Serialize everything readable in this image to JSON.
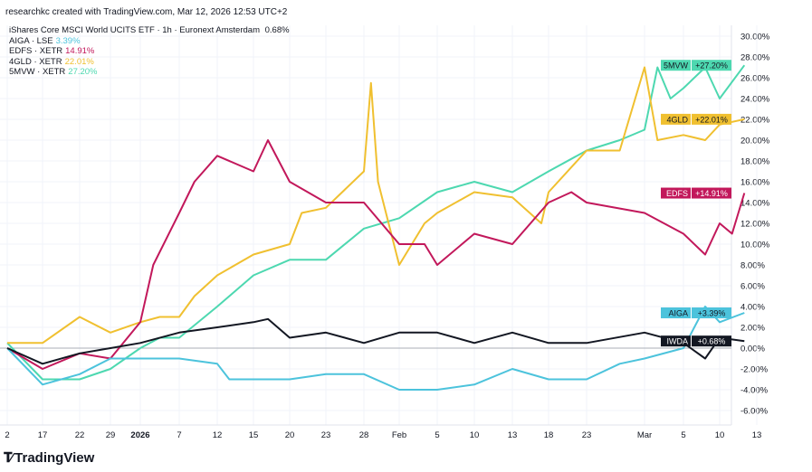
{
  "credit": "researchkc created with TradingView.com, Mar 12, 2026 12:53 UTC+2",
  "legend": {
    "main": "iShares Core MSCI World UCITS ETF · 1h · Euronext Amsterdam",
    "main_value": "0.68%",
    "items": [
      {
        "label": "AIGA · LSE",
        "value": "3.39%",
        "color": "#4cc3dc"
      },
      {
        "label": "EDFS · XETR",
        "value": "14.91%",
        "color": "#c2185b"
      },
      {
        "label": "4GLD · XETR",
        "value": "22.01%",
        "color": "#f0c030"
      },
      {
        "label": "5MVW · XETR",
        "value": "27.20%",
        "color": "#4dd8b0"
      }
    ]
  },
  "branding": {
    "logo_text": "TradingView",
    "logo_mark": "TV"
  },
  "chart_data": {
    "type": "line",
    "y_axis": {
      "position": "right",
      "ylim": [
        -7,
        31
      ],
      "ticks": [
        "30.00%",
        "28.00%",
        "26.00%",
        "24.00%",
        "22.00%",
        "20.00%",
        "18.00%",
        "16.00%",
        "14.00%",
        "12.00%",
        "10.00%",
        "8.00%",
        "6.00%",
        "4.00%",
        "2.00%",
        "0.00%",
        "-2.00%",
        "-4.00%",
        "-6.00%"
      ],
      "tick_values": [
        30,
        28,
        26,
        24,
        22,
        20,
        18,
        16,
        14,
        12,
        10,
        8,
        6,
        4,
        2,
        0,
        -2,
        -4,
        -6
      ]
    },
    "x_axis": {
      "ticks": [
        {
          "label": "2",
          "date": "2025-12-12"
        },
        {
          "label": "17",
          "date": "2025-12-17"
        },
        {
          "label": "22",
          "date": "2025-12-22"
        },
        {
          "label": "29",
          "date": "2025-12-29"
        },
        {
          "label": "2026",
          "date": "2026-01-01",
          "bold": true
        },
        {
          "label": "7",
          "date": "2026-01-07"
        },
        {
          "label": "12",
          "date": "2026-01-12"
        },
        {
          "label": "15",
          "date": "2026-01-15"
        },
        {
          "label": "20",
          "date": "2026-01-20"
        },
        {
          "label": "23",
          "date": "2026-01-23"
        },
        {
          "label": "28",
          "date": "2026-01-28"
        },
        {
          "label": "Feb",
          "date": "2026-02-02"
        },
        {
          "label": "5",
          "date": "2026-02-05"
        },
        {
          "label": "10",
          "date": "2026-02-10"
        },
        {
          "label": "13",
          "date": "2026-02-13"
        },
        {
          "label": "18",
          "date": "2026-02-18"
        },
        {
          "label": "23",
          "date": "2026-02-23"
        },
        {
          "label": "Mar",
          "date": "2026-03-02"
        },
        {
          "label": "5",
          "date": "2026-03-05"
        },
        {
          "label": "10",
          "date": "2026-03-10"
        },
        {
          "label": "13",
          "date": "2026-03-13"
        }
      ]
    },
    "grid": true,
    "baseline": 0,
    "series": [
      {
        "name": "IWDA",
        "label": "+0.68%",
        "last": 0.68,
        "color": "#131722",
        "points": [
          [
            "2025-12-12",
            0
          ],
          [
            "2025-12-17",
            -1.5
          ],
          [
            "2025-12-22",
            -0.5
          ],
          [
            "2025-12-29",
            0
          ],
          [
            "2026-01-01",
            0.5
          ],
          [
            "2026-01-07",
            1.5
          ],
          [
            "2026-01-12",
            2
          ],
          [
            "2026-01-15",
            2.5
          ],
          [
            "2026-01-17",
            2.8
          ],
          [
            "2026-01-20",
            1
          ],
          [
            "2026-01-23",
            1.5
          ],
          [
            "2026-01-28",
            0.5
          ],
          [
            "2026-02-02",
            1.5
          ],
          [
            "2026-02-05",
            1.5
          ],
          [
            "2026-02-10",
            0.5
          ],
          [
            "2026-02-13",
            1.5
          ],
          [
            "2026-02-18",
            0.5
          ],
          [
            "2026-02-23",
            0.5
          ],
          [
            "2026-03-02",
            1.5
          ],
          [
            "2026-03-05",
            0.5
          ],
          [
            "2026-03-08",
            -1
          ],
          [
            "2026-03-10",
            1
          ],
          [
            "2026-03-12",
            0.68
          ]
        ]
      },
      {
        "name": "AIGA",
        "label": "+3.39%",
        "last": 3.39,
        "color": "#4cc3dc",
        "points": [
          [
            "2025-12-12",
            0
          ],
          [
            "2025-12-17",
            -3.5
          ],
          [
            "2025-12-22",
            -2.5
          ],
          [
            "2025-12-29",
            -1
          ],
          [
            "2026-01-01",
            -1
          ],
          [
            "2026-01-07",
            -1
          ],
          [
            "2026-01-12",
            -1.5
          ],
          [
            "2026-01-13",
            -3
          ],
          [
            "2026-01-15",
            -3
          ],
          [
            "2026-01-20",
            -3
          ],
          [
            "2026-01-23",
            -2.5
          ],
          [
            "2026-01-28",
            -2.5
          ],
          [
            "2026-02-02",
            -4
          ],
          [
            "2026-02-05",
            -4
          ],
          [
            "2026-02-10",
            -3.5
          ],
          [
            "2026-02-13",
            -2
          ],
          [
            "2026-02-18",
            -3
          ],
          [
            "2026-02-23",
            -3
          ],
          [
            "2026-02-27",
            -1.5
          ],
          [
            "2026-03-02",
            -1
          ],
          [
            "2026-03-05",
            0
          ],
          [
            "2026-03-08",
            4
          ],
          [
            "2026-03-10",
            2.5
          ],
          [
            "2026-03-12",
            3.39
          ]
        ]
      },
      {
        "name": "EDFS",
        "label": "+14.91%",
        "last": 14.91,
        "color": "#c2185b",
        "points": [
          [
            "2025-12-12",
            0
          ],
          [
            "2025-12-17",
            -2
          ],
          [
            "2025-12-22",
            -0.5
          ],
          [
            "2025-12-29",
            -1
          ],
          [
            "2026-01-01",
            2.5
          ],
          [
            "2026-01-03",
            8
          ],
          [
            "2026-01-07",
            13
          ],
          [
            "2026-01-09",
            16
          ],
          [
            "2026-01-12",
            18.5
          ],
          [
            "2026-01-15",
            17
          ],
          [
            "2026-01-17",
            20
          ],
          [
            "2026-01-20",
            16
          ],
          [
            "2026-01-23",
            14
          ],
          [
            "2026-01-28",
            14
          ],
          [
            "2026-02-02",
            10
          ],
          [
            "2026-02-04",
            10
          ],
          [
            "2026-02-05",
            8
          ],
          [
            "2026-02-10",
            11
          ],
          [
            "2026-02-13",
            10
          ],
          [
            "2026-02-18",
            14
          ],
          [
            "2026-02-21",
            15
          ],
          [
            "2026-02-23",
            14
          ],
          [
            "2026-03-02",
            13
          ],
          [
            "2026-03-05",
            11
          ],
          [
            "2026-03-08",
            9
          ],
          [
            "2026-03-10",
            12
          ],
          [
            "2026-03-11",
            11
          ],
          [
            "2026-03-12",
            14.91
          ]
        ]
      },
      {
        "name": "4GLD",
        "label": "+22.01%",
        "last": 22.01,
        "color": "#f0c030",
        "points": [
          [
            "2025-12-12",
            0.5
          ],
          [
            "2025-12-17",
            0.5
          ],
          [
            "2025-12-22",
            3
          ],
          [
            "2025-12-29",
            1.5
          ],
          [
            "2026-01-01",
            2.5
          ],
          [
            "2026-01-04",
            3
          ],
          [
            "2026-01-07",
            3
          ],
          [
            "2026-01-09",
            5
          ],
          [
            "2026-01-12",
            7
          ],
          [
            "2026-01-15",
            9
          ],
          [
            "2026-01-20",
            10
          ],
          [
            "2026-01-21",
            13
          ],
          [
            "2026-01-23",
            13.5
          ],
          [
            "2026-01-28",
            17
          ],
          [
            "2026-01-29",
            25.5
          ],
          [
            "2026-01-30",
            16
          ],
          [
            "2026-02-02",
            8
          ],
          [
            "2026-02-04",
            12
          ],
          [
            "2026-02-05",
            13
          ],
          [
            "2026-02-10",
            15
          ],
          [
            "2026-02-13",
            14.5
          ],
          [
            "2026-02-17",
            12
          ],
          [
            "2026-02-18",
            15
          ],
          [
            "2026-02-23",
            19
          ],
          [
            "2026-02-27",
            19
          ],
          [
            "2026-03-02",
            27
          ],
          [
            "2026-03-03",
            20
          ],
          [
            "2026-03-05",
            20.5
          ],
          [
            "2026-03-08",
            20
          ],
          [
            "2026-03-10",
            21.5
          ],
          [
            "2026-03-12",
            22.01
          ]
        ]
      },
      {
        "name": "5MVW",
        "label": "+27.20%",
        "last": 27.2,
        "color": "#4dd8b0",
        "points": [
          [
            "2025-12-12",
            0.5
          ],
          [
            "2025-12-17",
            -3
          ],
          [
            "2025-12-22",
            -3
          ],
          [
            "2025-12-29",
            -2
          ],
          [
            "2026-01-01",
            0
          ],
          [
            "2026-01-04",
            1
          ],
          [
            "2026-01-07",
            1
          ],
          [
            "2026-01-12",
            4
          ],
          [
            "2026-01-15",
            7
          ],
          [
            "2026-01-20",
            8.5
          ],
          [
            "2026-01-23",
            8.5
          ],
          [
            "2026-01-28",
            11.5
          ],
          [
            "2026-02-02",
            12.5
          ],
          [
            "2026-02-05",
            15
          ],
          [
            "2026-02-10",
            16
          ],
          [
            "2026-02-13",
            15
          ],
          [
            "2026-02-18",
            17
          ],
          [
            "2026-02-23",
            19
          ],
          [
            "2026-02-27",
            20
          ],
          [
            "2026-03-02",
            21
          ],
          [
            "2026-03-03",
            27
          ],
          [
            "2026-03-04",
            24
          ],
          [
            "2026-03-05",
            25
          ],
          [
            "2026-03-08",
            27
          ],
          [
            "2026-03-10",
            24
          ],
          [
            "2026-03-12",
            27.2
          ]
        ]
      }
    ]
  }
}
